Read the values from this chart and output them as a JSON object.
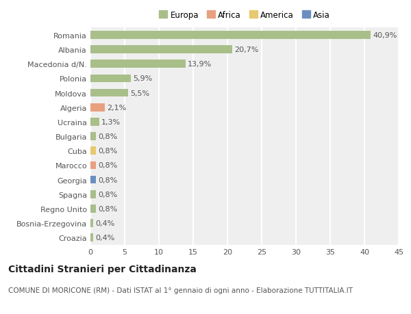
{
  "categories": [
    "Croazia",
    "Bosnia-Erzegovina",
    "Regno Unito",
    "Spagna",
    "Georgia",
    "Marocco",
    "Cuba",
    "Bulgaria",
    "Ucraina",
    "Algeria",
    "Moldova",
    "Polonia",
    "Macedonia d/N.",
    "Albania",
    "Romania"
  ],
  "values": [
    0.4,
    0.4,
    0.8,
    0.8,
    0.8,
    0.8,
    0.8,
    0.8,
    1.3,
    2.1,
    5.5,
    5.9,
    13.9,
    20.7,
    40.9
  ],
  "labels": [
    "0,4%",
    "0,4%",
    "0,8%",
    "0,8%",
    "0,8%",
    "0,8%",
    "0,8%",
    "0,8%",
    "1,3%",
    "2,1%",
    "5,5%",
    "5,9%",
    "13,9%",
    "20,7%",
    "40,9%"
  ],
  "colors": [
    "#a8bf8a",
    "#a8bf8a",
    "#a8bf8a",
    "#a8bf8a",
    "#6b8ec0",
    "#e8a080",
    "#e8c870",
    "#a8bf8a",
    "#a8bf8a",
    "#e8a080",
    "#a8bf8a",
    "#a8bf8a",
    "#a8bf8a",
    "#a8bf8a",
    "#a8bf8a"
  ],
  "legend_entries": [
    {
      "label": "Europa",
      "color": "#a8bf8a"
    },
    {
      "label": "Africa",
      "color": "#e8a080"
    },
    {
      "label": "America",
      "color": "#e8c870"
    },
    {
      "label": "Asia",
      "color": "#6b8ec0"
    }
  ],
  "xlim": [
    0,
    45
  ],
  "xticks": [
    0,
    5,
    10,
    15,
    20,
    25,
    30,
    35,
    40,
    45
  ],
  "title": "Cittadini Stranieri per Cittadinanza",
  "subtitle": "COMUNE DI MORICONE (RM) - Dati ISTAT al 1° gennaio di ogni anno - Elaborazione TUTTITALIA.IT",
  "background_color": "#ffffff",
  "plot_background": "#efefef",
  "grid_color": "#ffffff",
  "bar_height": 0.55,
  "title_fontsize": 10,
  "subtitle_fontsize": 7.5,
  "label_fontsize": 8,
  "tick_fontsize": 8,
  "legend_fontsize": 8.5
}
